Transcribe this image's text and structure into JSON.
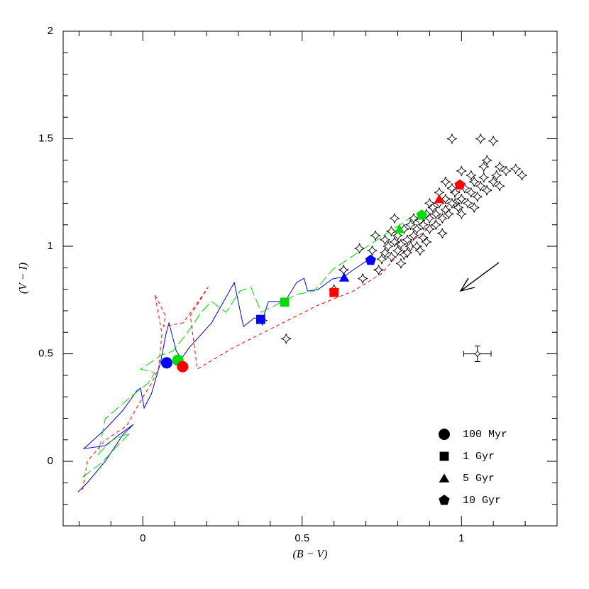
{
  "chart_data": {
    "type": "scatter",
    "x_label": "(B − V)",
    "y_label": "(V − I)",
    "xlim": [
      -0.25,
      1.3
    ],
    "ylim": [
      -0.3,
      2
    ],
    "xticks": [
      0,
      0.5,
      1
    ],
    "yticks": [
      0,
      0.5,
      1,
      1.5,
      2
    ],
    "xminorticks": [
      -0.2,
      -0.1,
      0.1,
      0.2,
      0.3,
      0.4,
      0.6,
      0.7,
      0.8,
      0.9,
      1.1,
      1.2
    ],
    "yminorticks": [
      -0.2,
      -0.1,
      0.1,
      0.2,
      0.3,
      0.4,
      0.6,
      0.7,
      0.8,
      0.9,
      1.1,
      1.2,
      1.3,
      1.4,
      1.6,
      1.7,
      1.8,
      1.9
    ],
    "legend": "lower right",
    "tracks": [
      {
        "color": "#0000ff",
        "dash": "solid",
        "x": [
          -0.203,
          -0.174,
          -0.118,
          -0.062,
          -0.029,
          -0.073,
          -0.118,
          -0.185,
          -0.118,
          -0.062,
          -0.018,
          -0.007,
          0.004,
          0.027,
          0.056,
          0.073,
          0.082,
          0.105,
          0.122,
          0.145,
          0.216,
          0.272,
          0.287,
          0.31,
          0.316,
          0.35,
          0.376,
          0.394,
          0.428,
          0.45,
          0.483,
          0.506,
          0.517,
          0.55,
          0.595,
          0.63,
          0.661,
          0.708
        ],
        "y": [
          -0.142,
          -0.099,
          0,
          0.125,
          0.172,
          0.125,
          0.073,
          0.059,
          0.149,
          0.238,
          0.33,
          0.34,
          0.248,
          0.314,
          0.462,
          0.594,
          0.644,
          0.512,
          0.479,
          0.528,
          0.644,
          0.792,
          0.832,
          0.667,
          0.627,
          0.667,
          0.66,
          0.743,
          0.743,
          0.752,
          0.832,
          0.851,
          0.792,
          0.799,
          0.848,
          0.858,
          0.891,
          0.937
        ]
      },
      {
        "color": "#00dd00",
        "dash": "long",
        "x": [
          -0.189,
          -0.129,
          -0.073,
          -0.04,
          -0.096,
          -0.14,
          -0.118,
          -0.04,
          0.016,
          0.038,
          -0.007,
          0.06,
          0.094,
          0.138,
          0.183,
          0.216,
          0.261,
          0.305,
          0.339,
          0.372,
          0.416,
          0.483,
          0.539,
          0.595,
          0.661,
          0.728,
          0.795,
          0.862
        ],
        "y": [
          -0.073,
          -0.007,
          0.083,
          0.132,
          0.099,
          0.033,
          0.198,
          0.297,
          0.363,
          0.413,
          0.429,
          0.495,
          0.512,
          0.594,
          0.693,
          0.743,
          0.693,
          0.792,
          0.809,
          0.693,
          0.726,
          0.776,
          0.792,
          0.891,
          0.957,
          1.023,
          1.089,
          1.155
        ]
      },
      {
        "color": "#ff0000",
        "dash": "short",
        "x": [
          -0.189,
          -0.174,
          -0.118,
          -0.051,
          -0.007,
          0.027,
          0.049,
          0.06,
          0.038,
          0.071,
          0.065,
          0.127,
          0.205,
          0.149,
          0.171,
          0.283,
          0.439,
          0.55,
          0.661,
          0.751,
          0.817,
          0.906,
          0.996
        ],
        "y": [
          -0.132,
          0,
          0.099,
          0.165,
          0.281,
          0.363,
          0.429,
          0.594,
          0.776,
          0.677,
          0.627,
          0.644,
          0.809,
          0.677,
          0.429,
          0.528,
          0.644,
          0.726,
          0.792,
          0.875,
          0.99,
          1.096,
          1.261
        ]
      }
    ],
    "clusters": {
      "x": [
        0.45,
        0.375,
        0.6,
        0.63,
        0.69,
        0.68,
        0.74,
        0.72,
        0.73,
        0.79,
        0.97,
        1.06,
        1.1,
        1.17,
        1.19,
        1.12,
        1.14,
        1.08,
        1.07,
        1.0,
        0.95,
        0.93,
        0.98,
        0.76,
        0.77,
        0.78,
        0.79,
        0.8,
        0.8,
        0.81,
        0.82,
        0.82,
        0.83,
        0.84,
        0.84,
        0.85,
        0.86,
        0.86,
        0.87,
        0.88,
        0.88,
        0.89,
        0.9,
        0.9,
        0.91,
        0.92,
        0.92,
        0.93,
        0.94,
        0.95,
        0.95,
        0.96,
        0.97,
        0.98,
        0.99,
        1.0,
        1.01,
        1.02,
        1.03,
        1.04,
        1.05,
        1.06,
        1.07,
        1.08,
        1.1,
        1.11,
        1.03,
        0.97,
        0.9,
        0.85,
        0.78,
        0.75,
        0.83,
        0.89,
        0.94,
        1.0,
        1.04,
        0.87,
        0.81,
        0.76,
        1.12
      ],
      "y": [
        0.57,
        0.655,
        0.8,
        0.89,
        0.85,
        0.99,
        0.89,
        0.98,
        1.05,
        1.13,
        1.5,
        1.5,
        1.49,
        1.36,
        1.33,
        1.37,
        1.35,
        1.4,
        1.37,
        1.35,
        1.3,
        1.25,
        1.2,
        0.97,
        1.0,
        0.95,
        1.02,
        0.98,
        1.05,
        1.01,
        0.96,
        1.08,
        1.03,
        1.0,
        1.1,
        1.05,
        1.08,
        1.0,
        1.12,
        1.04,
        1.1,
        1.15,
        1.08,
        1.13,
        1.18,
        1.1,
        1.15,
        1.2,
        1.13,
        1.17,
        1.22,
        1.15,
        1.2,
        1.25,
        1.18,
        1.22,
        1.27,
        1.2,
        1.25,
        1.3,
        1.23,
        1.28,
        1.32,
        1.26,
        1.3,
        1.33,
        1.33,
        1.27,
        1.2,
        1.13,
        1.07,
        0.94,
        0.97,
        1.02,
        1.06,
        1.15,
        1.18,
        0.98,
        0.92,
        1.03,
        1.28
      ]
    },
    "error_bar": {
      "x": 1.05,
      "y": 0.5,
      "xerr": 0.043,
      "yerr": 0.036
    },
    "series": [
      {
        "name": "100 Myr",
        "marker": "circle",
        "colors": [
          "#0000ff",
          "#00dd00",
          "#ff0000"
        ],
        "x": [
          0.075,
          0.11,
          0.125
        ],
        "y": [
          0.458,
          0.47,
          0.44
        ]
      },
      {
        "name": "1 Gyr",
        "marker": "square",
        "colors": [
          "#0000ff",
          "#00dd00",
          "#ff0000"
        ],
        "x": [
          0.37,
          0.445,
          0.6
        ],
        "y": [
          0.66,
          0.74,
          0.785
        ]
      },
      {
        "name": "5 Gyr",
        "marker": "triangle",
        "colors": [
          "#0000ff",
          "#00dd00",
          "#ff0000"
        ],
        "x": [
          0.632,
          0.805,
          0.93
        ],
        "y": [
          0.855,
          1.08,
          1.22
        ]
      },
      {
        "name": "10 Gyr",
        "marker": "pentagon",
        "colors": [
          "#0000ff",
          "#00dd00",
          "#ff0000"
        ],
        "x": [
          0.715,
          0.875,
          0.995
        ],
        "y": [
          0.935,
          1.145,
          1.285
        ]
      }
    ]
  }
}
